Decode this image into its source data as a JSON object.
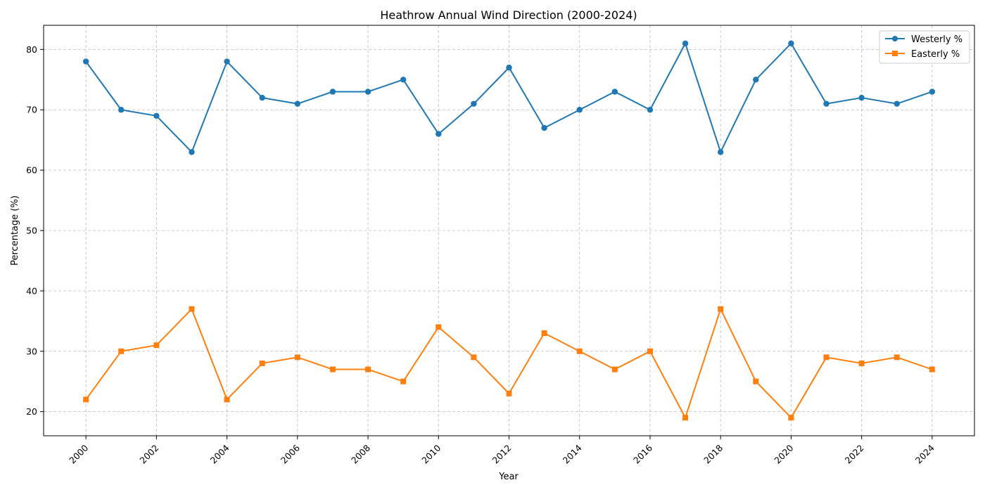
{
  "chart_data": {
    "type": "line",
    "title": "Heathrow Annual Wind Direction (2000-2024)",
    "xlabel": "Year",
    "ylabel": "Percentage (%)",
    "x": [
      2000,
      2001,
      2002,
      2003,
      2004,
      2005,
      2006,
      2007,
      2008,
      2009,
      2010,
      2011,
      2012,
      2013,
      2014,
      2015,
      2016,
      2017,
      2018,
      2019,
      2020,
      2021,
      2022,
      2023,
      2024
    ],
    "xticks": [
      2000,
      2002,
      2004,
      2006,
      2008,
      2010,
      2012,
      2014,
      2016,
      2018,
      2020,
      2022,
      2024
    ],
    "yticks": [
      20,
      30,
      40,
      50,
      60,
      70,
      80
    ],
    "xlim": [
      1998.8,
      2025.2
    ],
    "ylim": [
      16,
      84
    ],
    "grid": true,
    "legend_position": "top-right",
    "series": [
      {
        "name": "Westerly %",
        "color": "#1f77b4",
        "marker": "circle",
        "values": [
          78,
          70,
          69,
          63,
          78,
          72,
          71,
          73,
          73,
          75,
          66,
          71,
          77,
          67,
          70,
          73,
          70,
          81,
          63,
          75,
          81,
          71,
          72,
          71,
          73
        ]
      },
      {
        "name": "Easterly %",
        "color": "#ff7f0e",
        "marker": "square",
        "values": [
          22,
          30,
          31,
          37,
          22,
          28,
          29,
          27,
          27,
          25,
          34,
          29,
          23,
          33,
          30,
          27,
          30,
          19,
          37,
          25,
          19,
          29,
          28,
          29,
          27
        ]
      }
    ]
  }
}
